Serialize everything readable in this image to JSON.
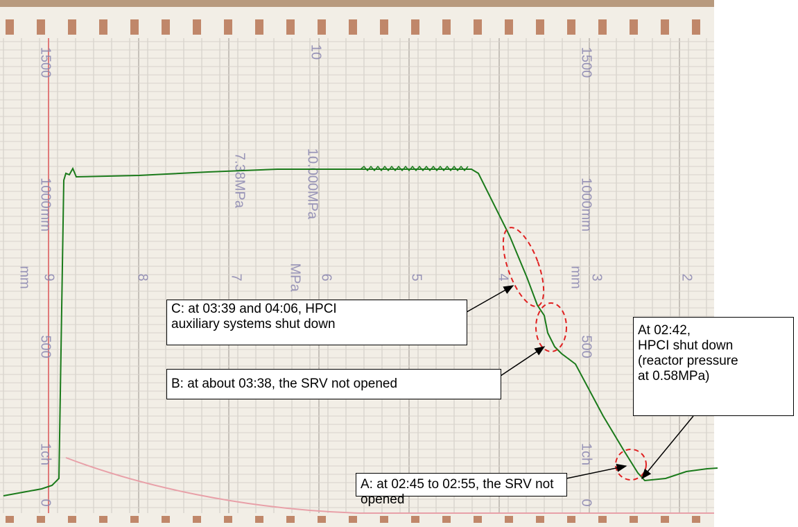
{
  "scale_labels": [
    "1500",
    "10",
    "1500",
    "1000mm",
    "7.38MPa",
    "10.000MPa",
    "1000mm",
    "mm",
    "9",
    "8",
    "7",
    "MPa",
    "6",
    "5",
    "4",
    "mm",
    "3",
    "2",
    "500",
    "500",
    "1ch",
    "1ch",
    "0",
    "0"
  ],
  "annotations": {
    "c": [
      "C: at 03:39 and 04:06, HPCI",
      "auxiliary systems shut down"
    ],
    "b": [
      "B: at about 03:38, the SRV not opened"
    ],
    "a": [
      "A: at 02:45 to 02:55, the SRV not opened"
    ],
    "d": [
      "At 02:42,",
      "HPCI shut down",
      "(reactor pressure",
      "at 0.58MPa)"
    ]
  }
}
